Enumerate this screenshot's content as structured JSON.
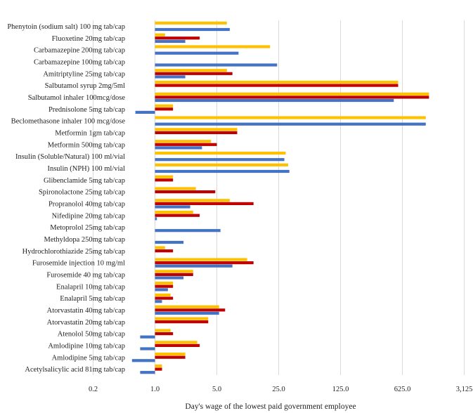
{
  "chart_data": {
    "type": "bar",
    "orientation": "horizontal",
    "xscale": "log5",
    "xlabel": "Day's wage of the lowest paid government employee",
    "xticks": [
      "0.2",
      "1.0",
      "5.0",
      "25.0",
      "125.0",
      "625.0",
      "3,125"
    ],
    "xlim": [
      0.2,
      3125
    ],
    "grid": "vertical",
    "legend": "none",
    "colors": [
      "#FFC000",
      "#C00000",
      "#4472C4"
    ],
    "categories": [
      "Phenytoin (sodium salt) 100 mg tab/cap",
      "Fluoxetine 20mg tab/cap",
      "Carbamazepine 200mg tab/cap",
      "Carbamazepine 100mg tab/cap",
      "Amitriptyline 25mg tab/cap",
      "Salbutamol syrup 2mg/5ml",
      "Salbutamol inhaler 100mcg/dose",
      "Prednisolone 5mg tab/cap",
      "Beclomethasone inhaler 100 mcg/dose",
      "Metformin 1gm tab/cap",
      "Metformin 500mg tab/cap",
      "Insulin (Soluble/Natural) 100 ml/vial",
      "Insulin (NPH) 100 ml/vial",
      "Glibenclamide 5mg tab/cap",
      "Spironolactone 25mg tab/cap",
      "Propranolol 40mg tab/cap",
      "Nifedipine 20mg tab/cap",
      "Metoprolol 25mg tab/cap",
      "Methyldopa 250mg tab/cap",
      "Hydrochlorothiazide 25mg tab/cap",
      "Furosemide injection 10 mg/ml",
      "Furosemide 40 mg tab/cap",
      "Enalapril 10mg tab/cap",
      "Enalapril 5mg tab/cap",
      "Atorvastatin 40mg tab/cap",
      "Atorvastatin 20mg tab/cap",
      "Atenolol 50mg tab/cap",
      "Amlodipine 10mg tab/cap",
      "Amlodipine 5mg tab/cap",
      "Acetylsalicylic acid 81mg tab/cap"
    ],
    "series": [
      {
        "values": [
          6.5,
          1.3,
          20,
          null,
          6.5,
          560,
          1250,
          1.6,
          1150,
          8.5,
          4.3,
          30,
          32,
          1.6,
          2.9,
          7,
          2.7,
          null,
          null,
          1.3,
          11,
          2.7,
          1.6,
          1.5,
          5.3,
          4,
          1.5,
          3,
          2.2,
          1.2
        ]
      },
      {
        "values": [
          null,
          3.2,
          null,
          null,
          7.5,
          560,
          1250,
          1.6,
          null,
          8.5,
          5,
          null,
          null,
          1.6,
          4.8,
          13,
          3.2,
          null,
          null,
          1.6,
          13,
          2.7,
          1.6,
          1.6,
          6.2,
          4,
          1.6,
          3.2,
          2.2,
          1.2
        ]
      },
      {
        "values": [
          7,
          2.2,
          8.8,
          24,
          2.2,
          null,
          500,
          0.6,
          1150,
          null,
          3.4,
          29,
          33,
          null,
          null,
          2.5,
          1.05,
          5.5,
          2.1,
          null,
          7.5,
          2.1,
          1.4,
          1.2,
          5.3,
          null,
          0.68,
          0.68,
          0.55,
          0.68
        ]
      }
    ]
  }
}
